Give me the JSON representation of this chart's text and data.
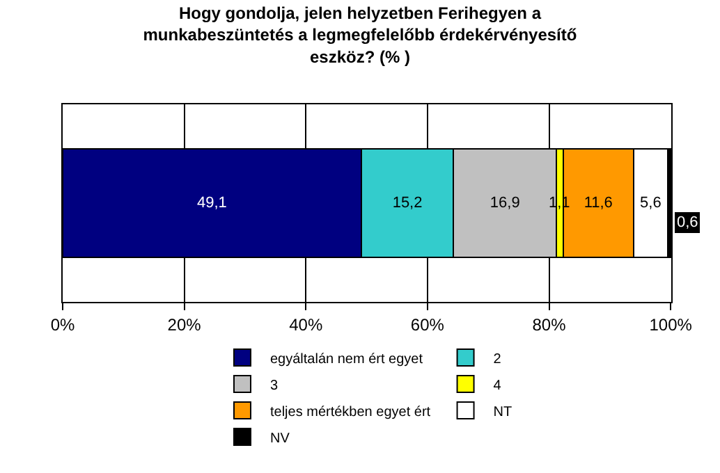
{
  "chart_data": {
    "type": "bar",
    "orientation": "horizontal",
    "stacked": true,
    "title": "Hogy gondolja, jelen helyzetben Ferihegyen a munkabeszüntetés a legmegfelelőbb érdekérvényesítő eszköz? (% )",
    "categories": [
      null
    ],
    "series": [
      {
        "name": "egyáltalán nem ért egyet",
        "color": "#000080",
        "values": [
          49.1
        ],
        "value_labels": [
          "49,1"
        ]
      },
      {
        "name": "2",
        "color": "#33cccc",
        "values": [
          15.2
        ],
        "value_labels": [
          "15,2"
        ]
      },
      {
        "name": "3",
        "color": "#c0c0c0",
        "values": [
          16.9
        ],
        "value_labels": [
          "16,9"
        ]
      },
      {
        "name": "4",
        "color": "#ffff00",
        "values": [
          1.1
        ],
        "value_labels": [
          "1,1"
        ]
      },
      {
        "name": "teljes mértékben egyet ért",
        "color": "#ff9900",
        "values": [
          11.6
        ],
        "value_labels": [
          "11,6"
        ]
      },
      {
        "name": "NT",
        "color": "#ffffff",
        "values": [
          5.6
        ],
        "value_labels": [
          "5,6"
        ]
      },
      {
        "name": "NV",
        "color": "#000000",
        "values": [
          0.6
        ],
        "value_labels": [
          "0,6"
        ]
      }
    ],
    "xlim": [
      0,
      100.1
    ],
    "xticks": [
      {
        "value": 0,
        "label": "0%"
      },
      {
        "value": 20,
        "label": "20%"
      },
      {
        "value": 40,
        "label": "40%"
      },
      {
        "value": 60,
        "label": "60%"
      },
      {
        "value": 80,
        "label": "80%"
      },
      {
        "value": 100,
        "label": "100%"
      }
    ],
    "grid": "x",
    "legend": "bottom"
  }
}
